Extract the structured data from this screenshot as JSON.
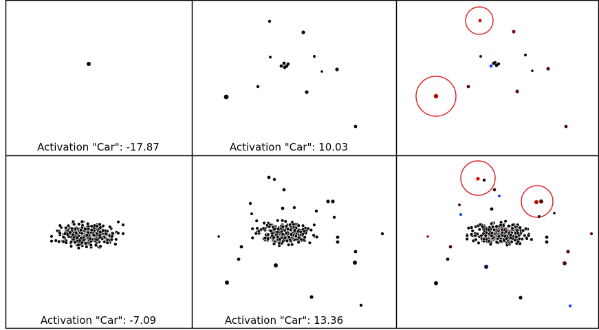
{
  "panels": [
    {
      "row": 0,
      "col": 0,
      "caption": "Activation \"Car\": -17.87"
    },
    {
      "row": 0,
      "col": 1,
      "caption": "Activation \"Car\": 10.03"
    },
    {
      "row": 0,
      "col": 2,
      "caption": ""
    },
    {
      "row": 1,
      "col": 0,
      "caption": "Activation \"Car\": -7.09"
    },
    {
      "row": 1,
      "col": 1,
      "caption": "Activation \"Car\": 13.36"
    },
    {
      "row": 1,
      "col": 2,
      "caption": ""
    }
  ],
  "colors": {
    "point": "#000000",
    "highlight_circle": "#e0262b",
    "red_point": "#d00000",
    "dark_red_point": "#5a0a0a",
    "blue_point": "#1a3cff",
    "border": "#000000"
  }
}
